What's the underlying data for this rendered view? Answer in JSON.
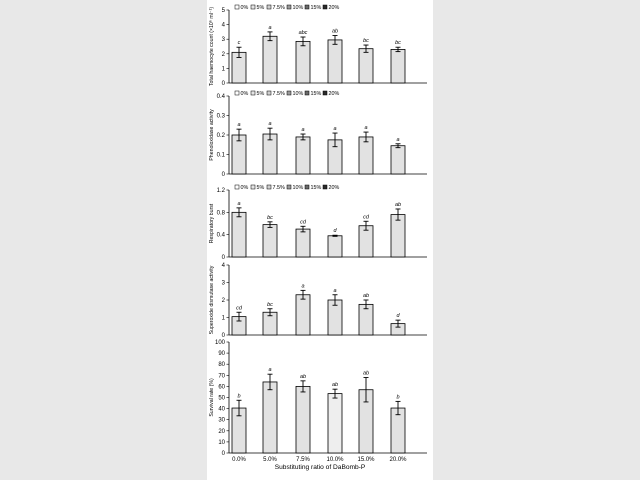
{
  "x_axis": {
    "categories": [
      "0.0%",
      "5.0%",
      "7.5%",
      "10.0%",
      "15.0%",
      "20.0%"
    ],
    "label": "Substituting ratio of DaBomb-P"
  },
  "legend": {
    "entries": [
      {
        "label": "0%",
        "color": "#ffffff"
      },
      {
        "label": "5%",
        "color": "#e4e4e4"
      },
      {
        "label": "7.5%",
        "color": "#cfcfcf"
      },
      {
        "label": "10%",
        "color": "#9a9a9a"
      },
      {
        "label": "15%",
        "color": "#6a6a6a"
      },
      {
        "label": "20%",
        "color": "#2a2a2a"
      }
    ]
  },
  "colors": {
    "bar_fill": "#e2e2e2",
    "bar_fill_highlight": "#eeeeee",
    "axis": "#000000"
  },
  "chart_data": [
    {
      "type": "bar",
      "ylabel": "Total haemocyte count (×10⁶ ml⁻¹)",
      "ylim": [
        0,
        5
      ],
      "yticks": [
        "0",
        "1",
        "2",
        "3",
        "4",
        "5"
      ],
      "categories": [
        "0.0%",
        "5.0%",
        "7.5%",
        "10.0%",
        "15.0%",
        "20.0%"
      ],
      "values": [
        2.1,
        3.2,
        2.85,
        2.95,
        2.35,
        2.3
      ],
      "errors": [
        0.35,
        0.3,
        0.3,
        0.3,
        0.25,
        0.15
      ],
      "labels": [
        "c",
        "a",
        "abc",
        "ab",
        "bc",
        "bc"
      ],
      "legend": true
    },
    {
      "type": "bar",
      "ylabel": "Phenoloxidase activity",
      "ylim": [
        0,
        0.4
      ],
      "yticks": [
        "0",
        "0.1",
        "0.2",
        "0.3",
        "0.4"
      ],
      "categories": [
        "0.0%",
        "5.0%",
        "7.5%",
        "10.0%",
        "15.0%",
        "20.0%"
      ],
      "values": [
        0.2,
        0.205,
        0.19,
        0.175,
        0.19,
        0.145
      ],
      "errors": [
        0.03,
        0.03,
        0.015,
        0.035,
        0.025,
        0.01
      ],
      "labels": [
        "a",
        "a",
        "a",
        "a",
        "a",
        "a"
      ],
      "legend": true
    },
    {
      "type": "bar",
      "ylabel": "Respiratory burst",
      "ylim": [
        0,
        1.2
      ],
      "yticks": [
        "0",
        "0.4",
        "0.8",
        "1.2"
      ],
      "categories": [
        "0.0%",
        "5.0%",
        "7.5%",
        "10.0%",
        "15.0%",
        "20.0%"
      ],
      "values": [
        0.8,
        0.58,
        0.5,
        0.38,
        0.56,
        0.76
      ],
      "errors": [
        0.08,
        0.05,
        0.05,
        0.01,
        0.08,
        0.1
      ],
      "labels": [
        "a",
        "bc",
        "cd",
        "d",
        "cd",
        "ab"
      ],
      "legend": true
    },
    {
      "type": "bar",
      "ylabel": "Superoxide dismutase activity",
      "ylim": [
        0,
        4
      ],
      "yticks": [
        "0",
        "1",
        "2",
        "3",
        "4"
      ],
      "categories": [
        "0.0%",
        "5.0%",
        "7.5%",
        "10.0%",
        "15.0%",
        "20.0%"
      ],
      "values": [
        1.05,
        1.3,
        2.3,
        2.0,
        1.75,
        0.65
      ],
      "errors": [
        0.25,
        0.2,
        0.25,
        0.3,
        0.25,
        0.2
      ],
      "labels": [
        "cd",
        "bc",
        "a",
        "a",
        "ab",
        "d"
      ],
      "legend": false
    },
    {
      "type": "bar",
      "ylabel": "Survival rate (%)",
      "ylim": [
        0,
        100
      ],
      "yticks": [
        "0",
        "10",
        "20",
        "30",
        "40",
        "50",
        "60",
        "70",
        "80",
        "90",
        "100"
      ],
      "categories": [
        "0.0%",
        "5.0%",
        "7.5%",
        "10.0%",
        "15.0%",
        "20.0%"
      ],
      "values": [
        40.5,
        64,
        60,
        53.5,
        57,
        40.5
      ],
      "errors": [
        7,
        7,
        5,
        4,
        11,
        6
      ],
      "labels": [
        "b",
        "a",
        "ab",
        "ab",
        "ab",
        "b"
      ],
      "highlight_index": 3,
      "legend": false
    }
  ]
}
